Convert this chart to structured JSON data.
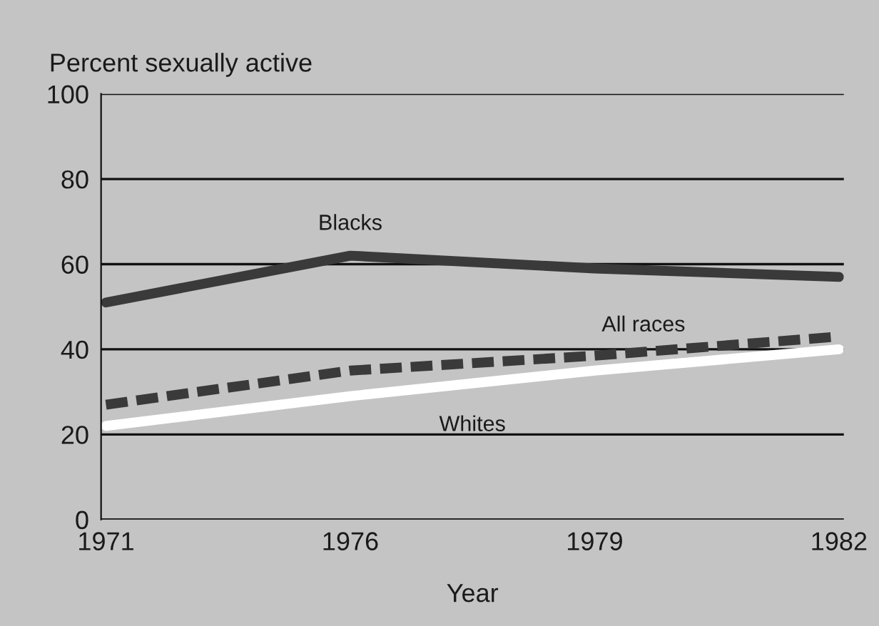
{
  "chart_data": {
    "type": "line",
    "ylabel": "Percent sexually active",
    "xlabel": "Year",
    "categories": [
      "1971",
      "1976",
      "1979",
      "1982"
    ],
    "series": [
      {
        "name": "Blacks",
        "color": "#3a3a3a",
        "line_style": "solid",
        "values": [
          51,
          62,
          59,
          57
        ]
      },
      {
        "name": "All races",
        "color": "#3a3a3a",
        "line_style": "dashed",
        "values": [
          27,
          35,
          38.5,
          43
        ]
      },
      {
        "name": "Whites",
        "color": "#ffffff",
        "line_style": "solid",
        "values": [
          22,
          29,
          35,
          40
        ]
      }
    ],
    "ylim": [
      0,
      100
    ],
    "yticks": [
      0,
      20,
      40,
      60,
      80,
      100
    ],
    "grid": "y",
    "legend": false
  }
}
